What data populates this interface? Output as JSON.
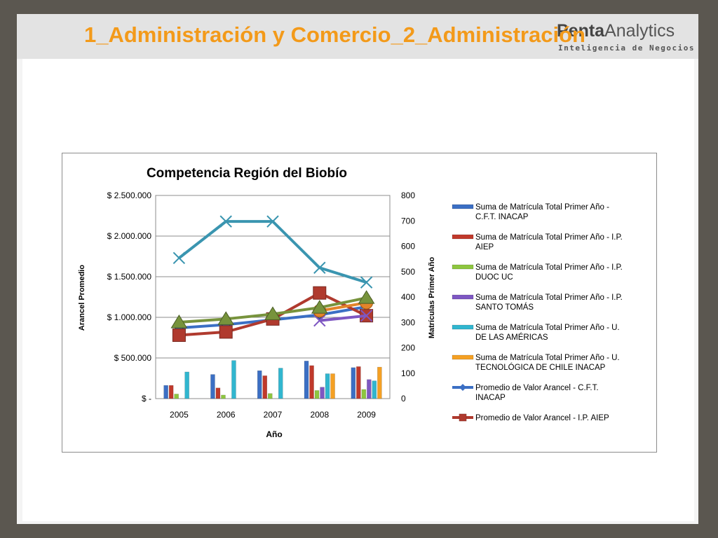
{
  "slide": {
    "title": "1_Administración y Comercio_2_Administración",
    "logo_brand_a": "Penta",
    "logo_brand_b": "Analytics",
    "logo_subtitle": "Inteligencia de Negocios"
  },
  "colors": {
    "frame_bg": "#5b5750",
    "title": "#f39a1a",
    "inacap_cft": "#3b6fc4",
    "aiep": "#c0392b",
    "duoc": "#8dc63f",
    "santo_tomas": "#7e57c2",
    "udla": "#31b6cf",
    "utec_inacap": "#f5a023",
    "line_inacap": "#3b6fc4",
    "line_aiep": "#b03a2e",
    "line_santo_tomas": "#7e57c2",
    "line_udla": "#3a95b0",
    "line_duoc": "#77933c",
    "line_utec": "#e3842a"
  },
  "chart_data": {
    "type": "bar",
    "title": "Competencia Región del Biobío",
    "xlabel": "Año",
    "ylabel_left": "Arancel Promedio",
    "ylabel_right": "Matrículas Primer Año",
    "categories": [
      "2005",
      "2006",
      "2007",
      "2008",
      "2009"
    ],
    "y_left": {
      "min": 0,
      "max": 2500000,
      "ticks": [
        0,
        500000,
        1000000,
        1500000,
        2000000,
        2500000
      ],
      "tick_labels": [
        "$ -",
        "$ 500.000",
        "$ 1.000.000",
        "$ 1.500.000",
        "$ 2.000.000",
        "$ 2.500.000"
      ]
    },
    "y_right": {
      "min": 0,
      "max": 800,
      "ticks": [
        0,
        100,
        200,
        300,
        400,
        500,
        600,
        700,
        800
      ],
      "tick_labels": [
        "0",
        "100",
        "200",
        "300",
        "400",
        "500",
        "600",
        "700",
        "800"
      ]
    },
    "grid": true,
    "legend_position": "right",
    "bar_series": [
      {
        "name": "Suma de Matrícula Total Primer Año - C.F.T. INACAP",
        "legend_lines": [
          "Suma de Matrícula Total Primer Año -",
          "C.F.T. INACAP"
        ],
        "color_key": "inacap_cft",
        "values": [
          52,
          95,
          110,
          148,
          122
        ]
      },
      {
        "name": "Suma de Matrícula Total Primer Año - I.P. AIEP",
        "legend_lines": [
          "Suma de Matrícula Total Primer Año - I.P.",
          "AIEP"
        ],
        "color_key": "aiep",
        "values": [
          52,
          42,
          90,
          130,
          126
        ]
      },
      {
        "name": "Suma de Matrícula Total Primer Año - I.P. DUOC UC",
        "legend_lines": [
          "Suma de Matrícula Total Primer Año - I.P.",
          "DUOC UC"
        ],
        "color_key": "duoc",
        "values": [
          18,
          14,
          20,
          32,
          36
        ]
      },
      {
        "name": "Suma de Matrícula Total Primer Año - I.P. SANTO TOMÁS",
        "legend_lines": [
          "Suma de Matrícula Total Primer Año - I.P.",
          "SANTO TOMÁS"
        ],
        "color_key": "santo_tomas",
        "values": [
          0,
          0,
          0,
          45,
          75
        ]
      },
      {
        "name": "Suma de Matrícula Total Primer Año - U. DE LAS AMÉRICAS",
        "legend_lines": [
          "Suma de Matrícula Total Primer Año - U.",
          "DE LAS AMÉRICAS"
        ],
        "color_key": "udla",
        "values": [
          105,
          150,
          120,
          98,
          70
        ]
      },
      {
        "name": "Suma de Matrícula Total Primer Año - U. TECNOLÓGICA DE CHILE INACAP",
        "legend_lines": [
          "Suma de Matrícula Total Primer Año - U.",
          "TECNOLÓGICA DE CHILE INACAP"
        ],
        "color_key": "utec_inacap",
        "values": [
          0,
          0,
          0,
          98,
          124
        ]
      }
    ],
    "line_series": [
      {
        "name": "Promedio de Valor Arancel - C.F.T. INACAP",
        "legend_lines": [
          "Promedio de Valor Arancel  - C.F.T.",
          "INACAP"
        ],
        "color_key": "line_inacap",
        "marker": "diamond",
        "in_legend": true,
        "values": [
          870000,
          910000,
          970000,
          1030000,
          1130000
        ]
      },
      {
        "name": "Promedio de Valor Arancel - I.P. AIEP",
        "legend_lines": [
          "Promedio de Valor Arancel  - I.P. AIEP"
        ],
        "color_key": "line_aiep",
        "marker": "square",
        "in_legend": true,
        "values": [
          780000,
          820000,
          980000,
          1300000,
          1020000
        ]
      },
      {
        "color_key": "line_santo_tomas",
        "marker": "x",
        "in_legend": false,
        "values": [
          null,
          null,
          null,
          960000,
          1020000
        ]
      },
      {
        "color_key": "line_udla",
        "marker": "x",
        "in_legend": false,
        "values": [
          1730000,
          2180000,
          2180000,
          1610000,
          1430000
        ]
      },
      {
        "color_key": "line_utec",
        "marker": "circle",
        "in_legend": false,
        "values": [
          null,
          null,
          null,
          1080000,
          1180000
        ]
      },
      {
        "color_key": "line_duoc",
        "marker": "triangle",
        "in_legend": false,
        "values": [
          940000,
          980000,
          1040000,
          1120000,
          1240000
        ]
      }
    ]
  }
}
